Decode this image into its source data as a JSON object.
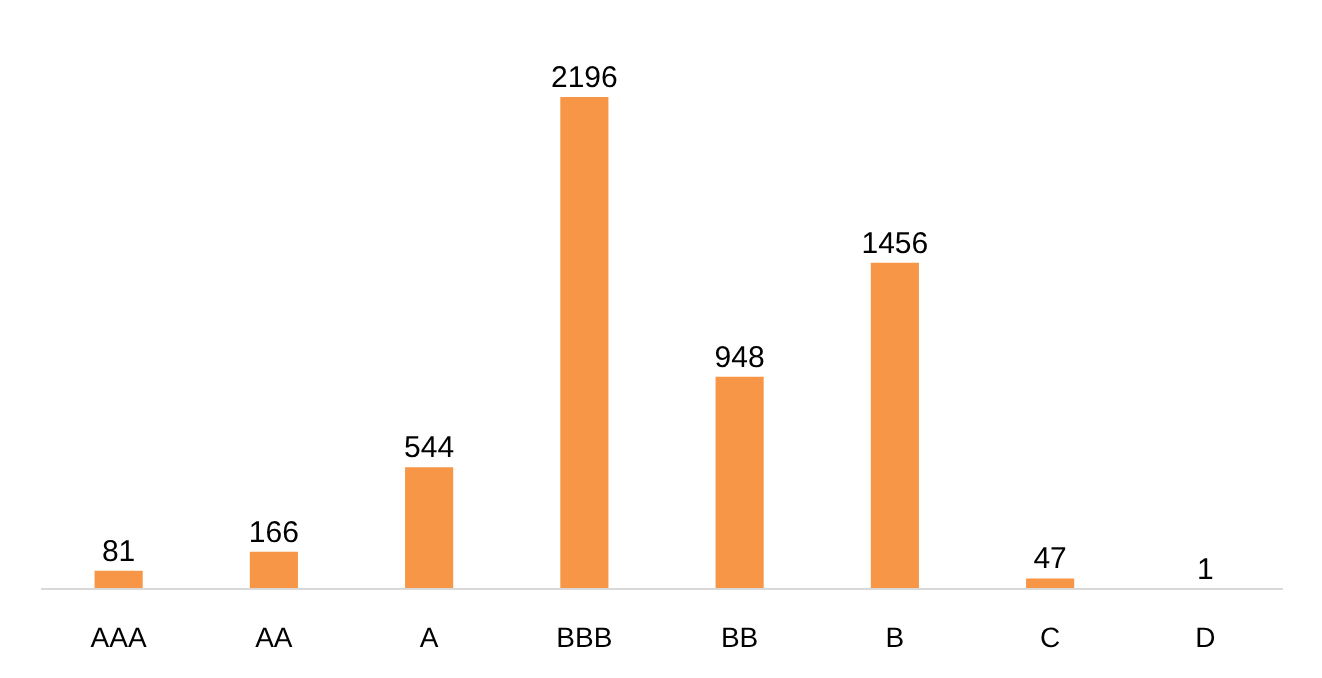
{
  "chart_data": {
    "type": "bar",
    "categories": [
      "AAA",
      "AA",
      "A",
      "BBB",
      "BB",
      "B",
      "C",
      "D"
    ],
    "values": [
      81,
      166,
      544,
      2196,
      948,
      1456,
      47,
      1
    ],
    "color": "#f79646",
    "data_labels": true,
    "grid": false
  }
}
